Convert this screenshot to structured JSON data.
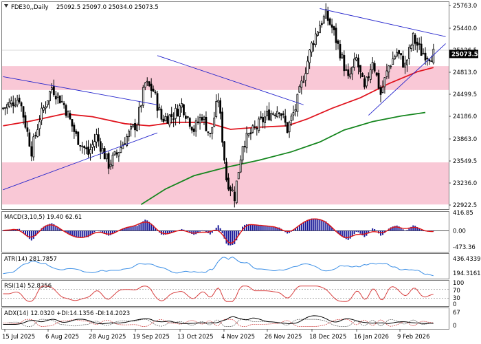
{
  "header": {
    "symbol": "FDE30,,Daily",
    "ohlc": "25092.5 25097.0 25034.0 25073.5"
  },
  "colors": {
    "candle": "#000000",
    "ema_fast": "#e0141e",
    "ema_slow": "#15861e",
    "trendline": "#2222cc",
    "zone": "#f9c8d6",
    "macd_hist": "#1a1a99",
    "macd_signal": "#e01414",
    "atr": "#3a8ee6",
    "rsi": "#d84040",
    "adx": "#000000",
    "price_tag": "#000000"
  },
  "price_axis": {
    "ticks": [
      "25763.0",
      "25440.0",
      "25126.5",
      "24813.0",
      "24499.5",
      "24186.0",
      "23863.0",
      "23549.5",
      "23236.0",
      "22922.5"
    ],
    "current_label": "25073.5"
  },
  "macd_panel": {
    "label": "MACD(3,10,5) 19.40 62.61",
    "ticks": [
      "416.85",
      "0.00",
      "-473.36"
    ]
  },
  "atr_panel": {
    "label": "ATR(14) 281.7857",
    "ticks": [
      "436.4339",
      "194.3161"
    ]
  },
  "rsi_panel": {
    "label": "RSI(14) 52.8356",
    "ticks": [
      "100",
      "70",
      "30",
      "0"
    ]
  },
  "adx_panel": {
    "label": "ADX(14) 12.0320 +DI:14.1356 -DI:14.2023",
    "ticks": [
      "67",
      "0"
    ]
  },
  "x_axis": {
    "ticks": [
      "15 Jul 2025",
      "6 Aug 2025",
      "28 Aug 2025",
      "19 Sep 2025",
      "13 Oct 2025",
      "4 Nov 2025",
      "26 Nov 2025",
      "18 Dec 2025",
      "16 Jan 2026",
      "9 Feb 2026"
    ]
  },
  "chart_data": {
    "type": "candlestick",
    "instrument": "FDE30",
    "timeframe": "Daily",
    "ylim": [
      22922.5,
      25763.0
    ],
    "zones": [
      [
        24560,
        24900
      ],
      [
        22930,
        23530
      ]
    ],
    "close_path": [
      {
        "x": 0,
        "y": 24300
      },
      {
        "x": 8,
        "y": 24450
      },
      {
        "x": 14,
        "y": 23700
      },
      {
        "x": 18,
        "y": 24150
      },
      {
        "x": 24,
        "y": 24600
      },
      {
        "x": 30,
        "y": 24350
      },
      {
        "x": 36,
        "y": 23900
      },
      {
        "x": 42,
        "y": 23650
      },
      {
        "x": 46,
        "y": 23900
      },
      {
        "x": 52,
        "y": 23500
      },
      {
        "x": 56,
        "y": 23650
      },
      {
        "x": 60,
        "y": 23850
      },
      {
        "x": 66,
        "y": 24100
      },
      {
        "x": 70,
        "y": 24650
      },
      {
        "x": 74,
        "y": 24550
      },
      {
        "x": 78,
        "y": 24150
      },
      {
        "x": 84,
        "y": 24200
      },
      {
        "x": 88,
        "y": 24350
      },
      {
        "x": 94,
        "y": 24000
      },
      {
        "x": 98,
        "y": 24200
      },
      {
        "x": 102,
        "y": 23900
      },
      {
        "x": 106,
        "y": 24450
      },
      {
        "x": 110,
        "y": 23300
      },
      {
        "x": 114,
        "y": 23050
      },
      {
        "x": 118,
        "y": 23800
      },
      {
        "x": 124,
        "y": 24000
      },
      {
        "x": 130,
        "y": 24200
      },
      {
        "x": 136,
        "y": 24300
      },
      {
        "x": 140,
        "y": 24000
      },
      {
        "x": 144,
        "y": 24300
      },
      {
        "x": 148,
        "y": 24750
      },
      {
        "x": 152,
        "y": 25200
      },
      {
        "x": 156,
        "y": 25500
      },
      {
        "x": 159,
        "y": 25620
      },
      {
        "x": 162,
        "y": 25450
      },
      {
        "x": 166,
        "y": 25100
      },
      {
        "x": 170,
        "y": 24700
      },
      {
        "x": 174,
        "y": 25000
      },
      {
        "x": 178,
        "y": 24550
      },
      {
        "x": 182,
        "y": 25000
      },
      {
        "x": 186,
        "y": 24500
      },
      {
        "x": 190,
        "y": 24900
      },
      {
        "x": 194,
        "y": 25100
      },
      {
        "x": 198,
        "y": 24900
      },
      {
        "x": 202,
        "y": 25300
      },
      {
        "x": 206,
        "y": 25100
      },
      {
        "x": 210,
        "y": 25050
      },
      {
        "x": 212,
        "y": 25073.5
      }
    ],
    "ema_fast": [
      {
        "x": 0,
        "y": 24050
      },
      {
        "x": 14,
        "y": 24120
      },
      {
        "x": 30,
        "y": 24220
      },
      {
        "x": 44,
        "y": 24180
      },
      {
        "x": 60,
        "y": 24080
      },
      {
        "x": 72,
        "y": 24050
      },
      {
        "x": 84,
        "y": 24100
      },
      {
        "x": 100,
        "y": 24100
      },
      {
        "x": 112,
        "y": 24000
      },
      {
        "x": 126,
        "y": 24030
      },
      {
        "x": 140,
        "y": 24050
      },
      {
        "x": 150,
        "y": 24150
      },
      {
        "x": 162,
        "y": 24300
      },
      {
        "x": 176,
        "y": 24450
      },
      {
        "x": 190,
        "y": 24650
      },
      {
        "x": 204,
        "y": 24820
      },
      {
        "x": 212,
        "y": 24880
      }
    ],
    "ema_slow": [
      {
        "x": 68,
        "y": 22930
      },
      {
        "x": 80,
        "y": 23150
      },
      {
        "x": 94,
        "y": 23340
      },
      {
        "x": 110,
        "y": 23460
      },
      {
        "x": 126,
        "y": 23560
      },
      {
        "x": 142,
        "y": 23680
      },
      {
        "x": 156,
        "y": 23820
      },
      {
        "x": 168,
        "y": 23990
      },
      {
        "x": 182,
        "y": 24110
      },
      {
        "x": 196,
        "y": 24190
      },
      {
        "x": 208,
        "y": 24240
      }
    ],
    "trendlines": [
      {
        "x1": 0,
        "y1": 24750,
        "x2": 76,
        "y2": 24350
      },
      {
        "x1": 0,
        "y1": 23140,
        "x2": 76,
        "y2": 23950
      },
      {
        "x1": 76,
        "y1": 25050,
        "x2": 148,
        "y2": 24350
      },
      {
        "x1": 156,
        "y1": 25720,
        "x2": 218,
        "y2": 25320
      },
      {
        "x1": 180,
        "y1": 24200,
        "x2": 218,
        "y2": 25220
      }
    ],
    "x_ticks": [
      "15 Jul 2025",
      "6 Aug 2025",
      "28 Aug 2025",
      "19 Sep 2025",
      "13 Oct 2025",
      "4 Nov 2025",
      "26 Nov 2025",
      "18 Dec 2025",
      "16 Jan 2026",
      "9 Feb 2026"
    ],
    "indicators": {
      "macd": {
        "params": "3,10,5",
        "main": 19.4,
        "signal": 62.61,
        "ylim": [
          -473.36,
          416.85
        ]
      },
      "atr": {
        "period": 14,
        "value": 281.7857,
        "ylim": [
          194.3161,
          436.4339
        ]
      },
      "rsi": {
        "period": 14,
        "value": 52.8356,
        "levels": [
          30,
          70
        ],
        "ylim": [
          0,
          100
        ]
      },
      "adx": {
        "period": 14,
        "adx": 12.032,
        "plus_di": 14.1356,
        "minus_di": 14.2023,
        "ylim": [
          0,
          67
        ]
      }
    }
  }
}
